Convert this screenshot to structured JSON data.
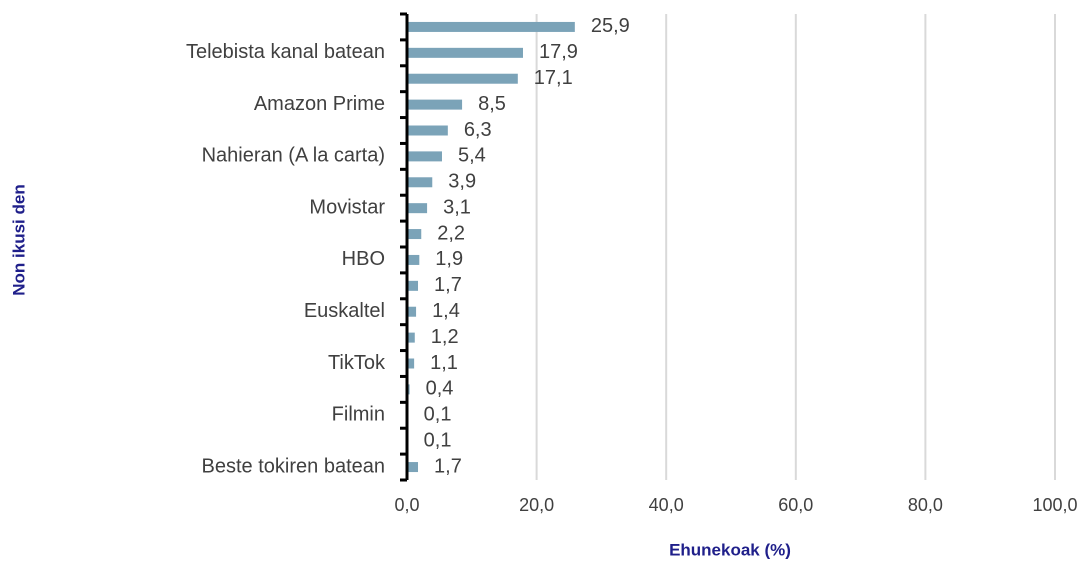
{
  "chart_data": {
    "type": "hbar",
    "categories": [
      null,
      "Telebista kanal batean",
      null,
      "Amazon Prime",
      null,
      "Nahieran (A la carta)",
      null,
      "Movistar",
      null,
      "HBO",
      null,
      "Euskaltel",
      null,
      "TikTok",
      null,
      "Filmin",
      null,
      "Beste tokiren batean"
    ],
    "values": [
      25.9,
      17.9,
      17.1,
      8.5,
      6.3,
      5.4,
      3.9,
      3.1,
      2.2,
      1.9,
      1.7,
      1.4,
      1.2,
      1.1,
      0.4,
      0.1,
      0.1,
      1.7
    ],
    "value_labels": [
      "25,9",
      "17,9",
      "17,1",
      "8,5",
      "6,3",
      "5,4",
      "3,9",
      "3,1",
      "2,2",
      "1,9",
      "1,7",
      "1,4",
      "1,2",
      "1,1",
      "0,4",
      "0,1",
      "0,1",
      "1,7"
    ],
    "color": "#7ba3b8",
    "xlim": [
      0,
      100
    ],
    "xticks": [
      {
        "value": 0,
        "label": "0,0"
      },
      {
        "value": 20,
        "label": "20,0"
      },
      {
        "value": 40,
        "label": "40,0"
      },
      {
        "value": 60,
        "label": "60,0"
      },
      {
        "value": 80,
        "label": "80,0"
      },
      {
        "value": 100,
        "label": "100,0"
      }
    ],
    "x_label": "Ehunekoak (%)",
    "y_label": "Non ikusi den",
    "grid": true
  }
}
